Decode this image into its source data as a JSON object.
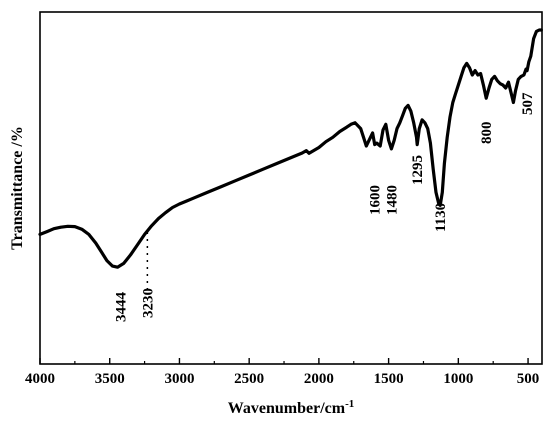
{
  "chart_data": {
    "type": "line",
    "title": "",
    "xlabel": "Wavenumber/cm",
    "xlabel_superscript": "-1",
    "ylabel": "Transmittance /%",
    "xlim": [
      4000,
      400
    ],
    "x_reversed": true,
    "y_tick_labels_shown": false,
    "ylim": [
      0,
      100
    ],
    "x_ticks": [
      4000,
      3500,
      3000,
      2500,
      2000,
      1500,
      1000,
      500
    ],
    "grid": false,
    "legend": "none",
    "line_color": "#000000",
    "series": [
      {
        "x": [
          4000,
          3950,
          3900,
          3850,
          3800,
          3750,
          3700,
          3650,
          3600,
          3560,
          3520,
          3480,
          3444,
          3400,
          3350,
          3300,
          3250,
          3200,
          3150,
          3100,
          3050,
          3000,
          2950,
          2900,
          2800,
          2700,
          2600,
          2500,
          2400,
          2300,
          2200,
          2120,
          2090,
          2070,
          2000,
          1950,
          1900,
          1850,
          1800,
          1770,
          1740,
          1700,
          1680,
          1660,
          1640,
          1615,
          1600,
          1585,
          1560,
          1540,
          1520,
          1500,
          1480,
          1460,
          1440,
          1420,
          1400,
          1380,
          1360,
          1340,
          1320,
          1300,
          1295,
          1280,
          1260,
          1240,
          1220,
          1200,
          1180,
          1160,
          1140,
          1130,
          1115,
          1100,
          1080,
          1060,
          1040,
          1020,
          1000,
          980,
          960,
          940,
          920,
          900,
          880,
          860,
          840,
          820,
          800,
          780,
          760,
          740,
          720,
          700,
          680,
          660,
          640,
          620,
          605,
          590,
          570,
          550,
          530,
          515,
          507,
          495,
          480,
          460,
          440,
          420,
          405
        ],
        "y": [
          29.5,
          30.5,
          31.5,
          32,
          32.3,
          32.2,
          31.3,
          29.5,
          26.5,
          23.5,
          20.5,
          18.6,
          18.2,
          19.5,
          22.5,
          26,
          29.5,
          32.5,
          35,
          37,
          38.8,
          40,
          41,
          42,
          44,
          46,
          48,
          50,
          52,
          54,
          56,
          57.6,
          58.4,
          57.5,
          59.5,
          61.5,
          63,
          65,
          66.5,
          67.5,
          68,
          66,
          63,
          60,
          62,
          64.5,
          60.5,
          61,
          60,
          65.5,
          67.5,
          62,
          59,
          62,
          66,
          68,
          70.5,
          73,
          74,
          72,
          68,
          63,
          60.5,
          66,
          69,
          68,
          66,
          61,
          52,
          44,
          40,
          39.5,
          44,
          54,
          63,
          70,
          75,
          78,
          81,
          84,
          87,
          88.5,
          87,
          84.5,
          86,
          84.5,
          85,
          81,
          76.5,
          80,
          83,
          84,
          82.5,
          81.5,
          81,
          80,
          82,
          78,
          75,
          79,
          83,
          84,
          84.5,
          86.5,
          86,
          89,
          91,
          97,
          99.5,
          100,
          100
        ]
      }
    ],
    "annotations": [
      {
        "text": "3444",
        "x": 3444
      },
      {
        "text": "3230",
        "x": 3230
      },
      {
        "text": "1600",
        "x": 1600
      },
      {
        "text": "1480",
        "x": 1480
      },
      {
        "text": "1295",
        "x": 1295
      },
      {
        "text": "1130",
        "x": 1130
      },
      {
        "text": "800",
        "x": 800
      },
      {
        "text": "507",
        "x": 507
      }
    ]
  }
}
